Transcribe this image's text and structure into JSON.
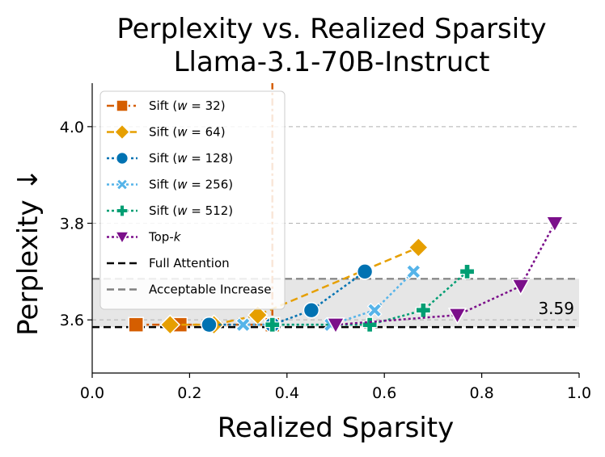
{
  "chart_data": {
    "type": "line",
    "title": "Perplexity vs. Realized Sparsity",
    "subtitle": "Llama-3.1-70B-Instruct",
    "xlabel": "Realized Sparsity",
    "ylabel": "Perplexity ↓",
    "xlim": [
      0.0,
      1.0
    ],
    "ylim": [
      3.49,
      4.09
    ],
    "xticks": [
      "0.0",
      "0.2",
      "0.4",
      "0.6",
      "0.8",
      "1.0"
    ],
    "yticks": [
      "3.6",
      "3.8",
      "4.0"
    ],
    "grid": "horizontal dashed",
    "legend_placement": "top-left",
    "series": [
      {
        "name": "Sift (w = 32)",
        "legend_prefix": "Sift (",
        "legend_var": "w",
        "legend_suffix": " = 32)",
        "color": "#d55e00",
        "marker": "square",
        "linestyle": "dashdot",
        "points": [
          [
            0.09,
            3.59
          ],
          [
            0.18,
            3.59
          ],
          [
            0.37,
            3.59
          ],
          [
            0.37,
            4.2
          ]
        ]
      },
      {
        "name": "Sift (w = 64)",
        "legend_prefix": "Sift (",
        "legend_var": "w",
        "legend_suffix": " = 64)",
        "color": "#e69f00",
        "marker": "diamond",
        "linestyle": "dashed",
        "points": [
          [
            0.16,
            3.59
          ],
          [
            0.25,
            3.59
          ],
          [
            0.34,
            3.61
          ],
          [
            0.67,
            3.75
          ]
        ]
      },
      {
        "name": "Sift (w = 128)",
        "legend_prefix": "Sift (",
        "legend_var": "w",
        "legend_suffix": " = 128)",
        "color": "#0072b2",
        "marker": "circle",
        "linestyle": "dotted",
        "points": [
          [
            0.24,
            3.59
          ],
          [
            0.37,
            3.59
          ],
          [
            0.45,
            3.62
          ],
          [
            0.56,
            3.7
          ]
        ]
      },
      {
        "name": "Sift (w = 256)",
        "legend_prefix": "Sift (",
        "legend_var": "w",
        "legend_suffix": " = 256)",
        "color": "#56b4e9",
        "marker": "x",
        "linestyle": "dotted",
        "points": [
          [
            0.31,
            3.59
          ],
          [
            0.49,
            3.59
          ],
          [
            0.58,
            3.62
          ],
          [
            0.66,
            3.7
          ]
        ]
      },
      {
        "name": "Sift (w = 512)",
        "legend_prefix": "Sift (",
        "legend_var": "w",
        "legend_suffix": " = 512)",
        "color": "#009e73",
        "marker": "plus",
        "linestyle": "dotted",
        "points": [
          [
            0.37,
            3.59
          ],
          [
            0.57,
            3.59
          ],
          [
            0.68,
            3.62
          ],
          [
            0.77,
            3.7
          ]
        ]
      },
      {
        "name": "Top-k",
        "legend_prefix": "Top-",
        "legend_var": "k",
        "legend_suffix": "",
        "color": "#7b0f8a",
        "marker": "triangle-down",
        "linestyle": "dotted",
        "points": [
          [
            0.5,
            3.59
          ],
          [
            0.75,
            3.61
          ],
          [
            0.88,
            3.67
          ],
          [
            0.95,
            3.8
          ]
        ]
      }
    ],
    "reference_lines": [
      {
        "name": "Full Attention",
        "y": 3.585,
        "color": "#000000",
        "linestyle": "dashed"
      },
      {
        "name": "Acceptable Increase",
        "y": 3.685,
        "color": "#808080",
        "linestyle": "dashed"
      }
    ],
    "shaded_band": {
      "y0": 3.585,
      "y1": 3.685,
      "color": "#e6e6e6"
    },
    "annotation": {
      "text": "3.59",
      "x": 0.99,
      "y": 3.62
    }
  }
}
